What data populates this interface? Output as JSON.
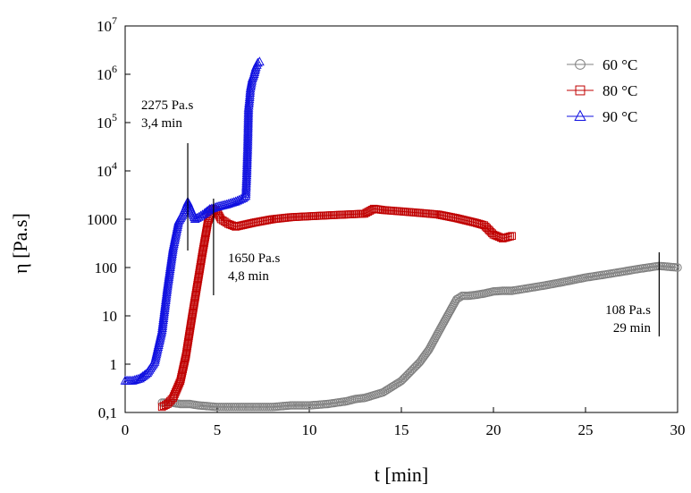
{
  "chart_data": {
    "type": "scatter",
    "title": "",
    "xlabel": "t [min]",
    "ylabel": "η [Pa.s]",
    "xlim": [
      0,
      30
    ],
    "ylim": [
      0.1,
      10000000
    ],
    "y_scale": "log",
    "grid": false,
    "legend_position": "top-right",
    "x_ticks": [
      {
        "value": 0,
        "label": "0"
      },
      {
        "value": 5,
        "label": "5"
      },
      {
        "value": 10,
        "label": "10"
      },
      {
        "value": 15,
        "label": "15"
      },
      {
        "value": 20,
        "label": "20"
      },
      {
        "value": 25,
        "label": "25"
      },
      {
        "value": 30,
        "label": "30"
      }
    ],
    "y_ticks": [
      {
        "value": 0.1,
        "label": "0,1",
        "base": "",
        "exp": ""
      },
      {
        "value": 1,
        "label": "1",
        "base": "",
        "exp": ""
      },
      {
        "value": 10,
        "label": "10",
        "base": "",
        "exp": ""
      },
      {
        "value": 100,
        "label": "100",
        "base": "",
        "exp": ""
      },
      {
        "value": 1000,
        "label": "1000",
        "base": "",
        "exp": ""
      },
      {
        "value": 10000,
        "label": "",
        "base": "10",
        "exp": "4"
      },
      {
        "value": 100000,
        "label": "",
        "base": "10",
        "exp": "5"
      },
      {
        "value": 1000000,
        "label": "",
        "base": "10",
        "exp": "6"
      },
      {
        "value": 10000000,
        "label": "",
        "base": "10",
        "exp": "7"
      }
    ],
    "series": [
      {
        "name": "60 °C",
        "color": "#808080",
        "marker": "circle",
        "x": [
          2.0,
          2.5,
          3,
          3.5,
          4,
          5,
          6,
          7,
          8,
          9,
          10,
          11,
          12,
          12.5,
          13,
          14,
          15,
          16,
          16.5,
          17,
          17.5,
          18,
          18.3,
          18.6,
          19,
          19.5,
          20,
          20.5,
          21,
          22,
          23,
          24,
          25,
          26,
          27,
          28,
          29,
          30
        ],
        "y": [
          0.16,
          0.16,
          0.15,
          0.15,
          0.14,
          0.13,
          0.13,
          0.13,
          0.13,
          0.14,
          0.14,
          0.15,
          0.17,
          0.19,
          0.2,
          0.26,
          0.45,
          1.1,
          2.0,
          4.5,
          10,
          22,
          26,
          26,
          27,
          29,
          32,
          33,
          33,
          38,
          44,
          52,
          62,
          71,
          82,
          95,
          108,
          100
        ]
      },
      {
        "name": "80 °C",
        "color": "#c00000",
        "marker": "square",
        "x": [
          2.0,
          2.3,
          2.6,
          3.0,
          3.3,
          3.6,
          3.9,
          4.2,
          4.5,
          4.8,
          5.0,
          5.2,
          5.6,
          6,
          7,
          8,
          9,
          10,
          11,
          12,
          13,
          13.5,
          14,
          15,
          16,
          17,
          18,
          19,
          19.5,
          20,
          20.5,
          21
        ],
        "y": [
          0.13,
          0.15,
          0.2,
          0.45,
          1.5,
          8,
          40,
          200,
          900,
          1650,
          1400,
          1000,
          800,
          700,
          850,
          1000,
          1100,
          1150,
          1200,
          1250,
          1300,
          1650,
          1550,
          1450,
          1350,
          1250,
          1050,
          850,
          750,
          480,
          400,
          450
        ]
      },
      {
        "name": "90 °C",
        "color": "#1010e0",
        "marker": "triangle",
        "x": [
          0,
          0.4,
          0.8,
          1.2,
          1.6,
          2.0,
          2.3,
          2.6,
          2.9,
          3.1,
          3.3,
          3.4,
          3.6,
          3.8,
          4.0,
          4.3,
          4.6,
          5.0,
          5.5,
          6.0,
          6.4,
          6.55,
          6.6,
          6.65,
          6.7,
          6.75,
          6.8,
          6.9,
          7.0,
          7.1,
          7.2,
          7.3
        ],
        "y": [
          0.45,
          0.45,
          0.5,
          0.65,
          1.1,
          5,
          40,
          250,
          900,
          1200,
          1800,
          2275,
          1500,
          1000,
          1100,
          1300,
          1600,
          1800,
          2000,
          2300,
          2700,
          3000,
          8000,
          30000,
          200000,
          300000,
          500000,
          800000,
          1000000,
          1400000,
          1700000,
          1800000
        ]
      }
    ],
    "annotations": [
      {
        "lines": [
          "2275 Pa.s",
          "3,4 min"
        ],
        "x": 3.4,
        "y": 2275
      },
      {
        "lines": [
          "1650 Pa.s",
          "4,8 min"
        ],
        "x": 4.8,
        "y": 1650
      },
      {
        "lines": [
          "108 Pa.s",
          "29 min"
        ],
        "x": 29,
        "y": 108
      }
    ]
  }
}
